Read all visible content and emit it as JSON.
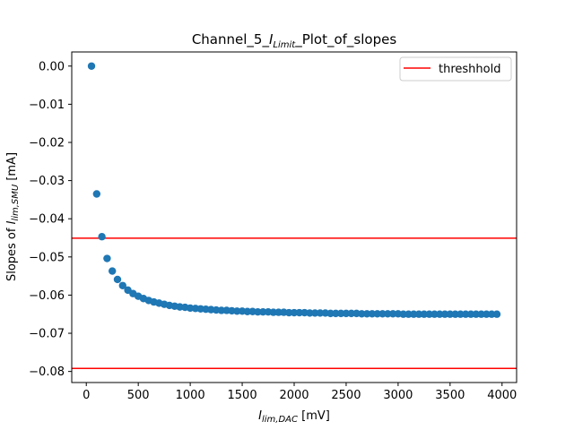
{
  "chart_data": {
    "type": "scatter",
    "title_prefix": "Channel_5_",
    "title_italic_main": "I",
    "title_italic_sub": "Limit",
    "title_suffix": "_Plot_of_slopes",
    "xlabel_main": "I",
    "xlabel_sub": "lim,DAC",
    "xlabel_unit": " [mV]",
    "ylabel_prefix": "Slopes of ",
    "ylabel_main": "I",
    "ylabel_sub": "lim,SMU",
    "ylabel_unit": " [mA]",
    "xlim": [
      -140,
      4140
    ],
    "ylim": [
      -0.0829,
      0.0037
    ],
    "xticks": [
      0,
      500,
      1000,
      1500,
      2000,
      2500,
      3000,
      3500,
      4000
    ],
    "yticks": [
      0.0,
      -0.01,
      -0.02,
      -0.03,
      -0.04,
      -0.05,
      -0.06,
      -0.07,
      -0.08
    ],
    "ytick_labels": [
      "0.00",
      "−0.01",
      "−0.02",
      "−0.03",
      "−0.04",
      "−0.05",
      "−0.06",
      "−0.07",
      "−0.08"
    ],
    "threshold_lines": [
      -0.0451,
      -0.0792
    ],
    "legend": {
      "label": "threshhold",
      "location": "upper right"
    },
    "colors": {
      "points": "#1f77b4",
      "threshold": "#ff0000"
    },
    "series": [
      {
        "x": [
          50,
          100,
          150,
          200,
          250,
          300,
          350,
          400,
          450,
          500,
          550,
          600,
          650,
          700,
          750,
          800,
          850,
          900,
          950,
          1000,
          1050,
          1100,
          1150,
          1200,
          1250,
          1300,
          1350,
          1400,
          1450,
          1500,
          1550,
          1600,
          1650,
          1700,
          1750,
          1800,
          1850,
          1900,
          1950,
          2000,
          2050,
          2100,
          2150,
          2200,
          2250,
          2300,
          2350,
          2400,
          2450,
          2500,
          2550,
          2600,
          2650,
          2700,
          2750,
          2800,
          2850,
          2900,
          2950,
          3000,
          3050,
          3100,
          3150,
          3200,
          3250,
          3300,
          3350,
          3400,
          3450,
          3500,
          3550,
          3600,
          3650,
          3700,
          3750,
          3800,
          3850,
          3900,
          3950
        ],
        "y": [
          0.0,
          -0.0335,
          -0.0447,
          -0.0504,
          -0.0537,
          -0.0559,
          -0.0575,
          -0.0587,
          -0.0596,
          -0.0603,
          -0.0609,
          -0.0614,
          -0.0618,
          -0.0621,
          -0.0624,
          -0.0627,
          -0.0629,
          -0.0631,
          -0.0632,
          -0.0634,
          -0.0635,
          -0.0636,
          -0.0637,
          -0.0638,
          -0.0639,
          -0.064,
          -0.064,
          -0.0641,
          -0.0642,
          -0.0642,
          -0.0643,
          -0.0643,
          -0.0644,
          -0.0644,
          -0.0644,
          -0.0645,
          -0.0645,
          -0.0645,
          -0.0646,
          -0.0646,
          -0.0646,
          -0.0646,
          -0.0647,
          -0.0647,
          -0.0647,
          -0.0647,
          -0.0648,
          -0.0648,
          -0.0648,
          -0.0648,
          -0.0648,
          -0.0648,
          -0.0649,
          -0.0649,
          -0.0649,
          -0.0649,
          -0.0649,
          -0.0649,
          -0.0649,
          -0.0649,
          -0.065,
          -0.065,
          -0.065,
          -0.065,
          -0.065,
          -0.065,
          -0.065,
          -0.065,
          -0.065,
          -0.065,
          -0.065,
          -0.065,
          -0.065,
          -0.065,
          -0.065,
          -0.065,
          -0.065,
          -0.065,
          -0.065
        ]
      }
    ]
  }
}
